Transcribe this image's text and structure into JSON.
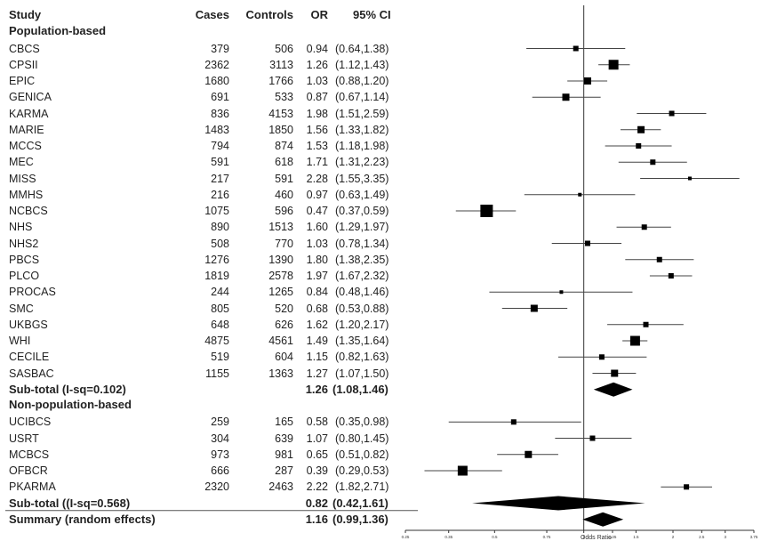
{
  "headers": {
    "study": "Study",
    "cases": "Cases",
    "controls": "Controls",
    "or": "OR",
    "ci": "95% CI"
  },
  "groups": [
    {
      "label": "Population-based",
      "studies": [
        {
          "name": "CBCS",
          "cases": "379",
          "controls": "506",
          "or": "0.94",
          "ci": "(0.64,1.38)",
          "est": 0.94,
          "lo": 0.64,
          "hi": 1.38,
          "w": 1
        },
        {
          "name": "CPSII",
          "cases": "2362",
          "controls": "3113",
          "or": "1.26",
          "ci": "(1.12,1.43)",
          "est": 1.26,
          "lo": 1.12,
          "hi": 1.43,
          "w": 3
        },
        {
          "name": "EPIC",
          "cases": "1680",
          "controls": "1766",
          "or": "1.03",
          "ci": "(0.88,1.20)",
          "est": 1.03,
          "lo": 0.88,
          "hi": 1.2,
          "w": 2
        },
        {
          "name": "GENICA",
          "cases": "691",
          "controls": "533",
          "or": "0.87",
          "ci": "(0.67,1.14)",
          "est": 0.87,
          "lo": 0.67,
          "hi": 1.14,
          "w": 2
        },
        {
          "name": "KARMA",
          "cases": "836",
          "controls": "4153",
          "or": "1.98",
          "ci": "(1.51,2.59)",
          "est": 1.98,
          "lo": 1.51,
          "hi": 2.59,
          "w": 1
        },
        {
          "name": "MARIE",
          "cases": "1483",
          "controls": "1850",
          "or": "1.56",
          "ci": "(1.33,1.82)",
          "est": 1.56,
          "lo": 1.33,
          "hi": 1.82,
          "w": 2
        },
        {
          "name": "MCCS",
          "cases": "794",
          "controls": "874",
          "or": "1.53",
          "ci": "(1.18,1.98)",
          "est": 1.53,
          "lo": 1.18,
          "hi": 1.98,
          "w": 1
        },
        {
          "name": "MEC",
          "cases": "591",
          "controls": "618",
          "or": "1.71",
          "ci": "(1.31,2.23)",
          "est": 1.71,
          "lo": 1.31,
          "hi": 2.23,
          "w": 1
        },
        {
          "name": "MISS",
          "cases": "217",
          "controls": "591",
          "or": "2.28",
          "ci": "(1.55,3.35)",
          "est": 2.28,
          "lo": 1.55,
          "hi": 3.35,
          "w": 0
        },
        {
          "name": "MMHS",
          "cases": "216",
          "controls": "460",
          "or": "0.97",
          "ci": "(0.63,1.49)",
          "est": 0.97,
          "lo": 0.63,
          "hi": 1.49,
          "w": 0
        },
        {
          "name": "NCBCS",
          "cases": "1075",
          "controls": "596",
          "or": "0.47",
          "ci": "(0.37,0.59)",
          "est": 0.47,
          "lo": 0.37,
          "hi": 0.59,
          "w": 4
        },
        {
          "name": "NHS",
          "cases": "890",
          "controls": "1513",
          "or": "1.60",
          "ci": "(1.29,1.97)",
          "est": 1.6,
          "lo": 1.29,
          "hi": 1.97,
          "w": 1
        },
        {
          "name": "NHS2",
          "cases": "508",
          "controls": "770",
          "or": "1.03",
          "ci": "(0.78,1.34)",
          "est": 1.03,
          "lo": 0.78,
          "hi": 1.34,
          "w": 1
        },
        {
          "name": "PBCS",
          "cases": "1276",
          "controls": "1390",
          "or": "1.80",
          "ci": "(1.38,2.35)",
          "est": 1.8,
          "lo": 1.38,
          "hi": 2.35,
          "w": 1
        },
        {
          "name": "PLCO",
          "cases": "1819",
          "controls": "2578",
          "or": "1.97",
          "ci": "(1.67,2.32)",
          "est": 1.97,
          "lo": 1.67,
          "hi": 2.32,
          "w": 1
        },
        {
          "name": "PROCAS",
          "cases": "244",
          "controls": "1265",
          "or": "0.84",
          "ci": "(0.48,1.46)",
          "est": 0.84,
          "lo": 0.48,
          "hi": 1.46,
          "w": 0
        },
        {
          "name": "SMC",
          "cases": "805",
          "controls": "520",
          "or": "0.68",
          "ci": "(0.53,0.88)",
          "est": 0.68,
          "lo": 0.53,
          "hi": 0.88,
          "w": 2
        },
        {
          "name": "UKBGS",
          "cases": "648",
          "controls": "626",
          "or": "1.62",
          "ci": "(1.20,2.17)",
          "est": 1.62,
          "lo": 1.2,
          "hi": 2.17,
          "w": 1
        },
        {
          "name": "WHI",
          "cases": "4875",
          "controls": "4561",
          "or": "1.49",
          "ci": "(1.35,1.64)",
          "est": 1.49,
          "lo": 1.35,
          "hi": 1.64,
          "w": 3
        },
        {
          "name": "CECILE",
          "cases": "519",
          "controls": "604",
          "or": "1.15",
          "ci": "(0.82,1.63)",
          "est": 1.15,
          "lo": 0.82,
          "hi": 1.63,
          "w": 1
        },
        {
          "name": "SASBAC",
          "cases": "1155",
          "controls": "1363",
          "or": "1.27",
          "ci": "(1.07,1.50)",
          "est": 1.27,
          "lo": 1.07,
          "hi": 1.5,
          "w": 2
        }
      ],
      "subtotal": {
        "label": "Sub-total (I-sq=0.102)",
        "or": "1.26",
        "ci": "(1.08,1.46)",
        "est": 1.26,
        "lo": 1.08,
        "hi": 1.46
      }
    },
    {
      "label": "Non-population-based",
      "studies": [
        {
          "name": "UCIBCS",
          "cases": "259",
          "controls": "165",
          "or": "0.58",
          "ci": "(0.35,0.98)",
          "est": 0.58,
          "lo": 0.35,
          "hi": 0.98,
          "w": 1
        },
        {
          "name": "USRT",
          "cases": "304",
          "controls": "639",
          "or": "1.07",
          "ci": "(0.80,1.45)",
          "est": 1.07,
          "lo": 0.8,
          "hi": 1.45,
          "w": 1
        },
        {
          "name": "MCBCS",
          "cases": "973",
          "controls": "981",
          "or": "0.65",
          "ci": "(0.51,0.82)",
          "est": 0.65,
          "lo": 0.51,
          "hi": 0.82,
          "w": 2
        },
        {
          "name": "OFBCR",
          "cases": "666",
          "controls": "287",
          "or": "0.39",
          "ci": "(0.29,0.53)",
          "est": 0.39,
          "lo": 0.29,
          "hi": 0.53,
          "w": 3
        },
        {
          "name": "PKARMA",
          "cases": "2320",
          "controls": "2463",
          "or": "2.22",
          "ci": "(1.82,2.71)",
          "est": 2.22,
          "lo": 1.82,
          "hi": 2.71,
          "w": 1
        }
      ],
      "subtotal": {
        "label": "Sub-total ((I-sq=0.568)",
        "or": "0.82",
        "ci": "(0.42,1.61)",
        "est": 0.82,
        "lo": 0.42,
        "hi": 1.61
      }
    }
  ],
  "summary": {
    "label": "Summary (random effects)",
    "or": "1.16",
    "ci": "(0.99,1.36)",
    "est": 1.16,
    "lo": 0.99,
    "hi": 1.36
  },
  "chart_data": {
    "type": "forest",
    "xlabel": "Odds Ratio",
    "x_scale": "log",
    "xlim": [
      0.25,
      3.75
    ],
    "reference_line": 1,
    "x_ticks": [
      "0.25",
      "0.35",
      "0.5",
      "0.75",
      "1",
      "1.25",
      "1.5",
      "2",
      "2.5",
      "3",
      "3.75"
    ],
    "colors": {
      "marker": "#000000",
      "line": "#444444"
    }
  }
}
